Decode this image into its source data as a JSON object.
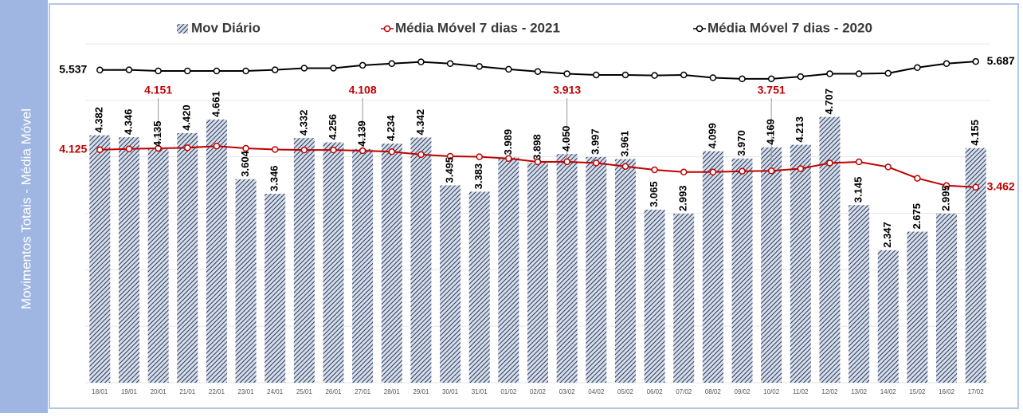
{
  "chart_data": {
    "type": "bar",
    "y_label": "Movimentos Totais - Média Móvel",
    "categories": [
      "18/01",
      "19/01",
      "20/01",
      "21/01",
      "22/01",
      "23/01",
      "24/01",
      "25/01",
      "26/01",
      "27/01",
      "28/01",
      "29/01",
      "30/01",
      "31/01",
      "01/02",
      "02/02",
      "03/02",
      "04/02",
      "05/02",
      "06/02",
      "07/02",
      "08/02",
      "09/02",
      "10/02",
      "11/02",
      "12/02",
      "13/02",
      "14/02",
      "15/02",
      "16/02",
      "17/02"
    ],
    "ylim": [
      0,
      6000
    ],
    "yticks": [
      0,
      1000,
      2000,
      3000,
      4000,
      5000,
      6000
    ],
    "grid": true,
    "series": [
      {
        "name": "Mov Diário",
        "type": "bar",
        "color": "#1f3864",
        "values": [
          4382,
          4346,
          4135,
          4420,
          4661,
          3604,
          3346,
          4332,
          4256,
          4139,
          4234,
          4342,
          3495,
          3383,
          3989,
          3898,
          4050,
          3997,
          3961,
          3065,
          2993,
          4099,
          3970,
          4169,
          4213,
          4707,
          3145,
          2347,
          2675,
          2995,
          4155
        ],
        "value_labels": [
          "4.382",
          "4.346",
          "4.135",
          "4.420",
          "4.661",
          "3.604",
          "3.346",
          "4.332",
          "4.256",
          "4.139",
          "4.234",
          "4.342",
          "3.495",
          "3.383",
          "3.989",
          "3.898",
          "4.050",
          "3.997",
          "3.961",
          "3.065",
          "2.993",
          "4.099",
          "3.970",
          "4.169",
          "4.213",
          "4.707",
          "3.145",
          "2.347",
          "2.675",
          "2.995",
          "4.155"
        ]
      },
      {
        "name": "Média Móvel 7 dias - 2021",
        "type": "line",
        "color": "#c00000",
        "values": [
          4125,
          4140,
          4151,
          4160,
          4190,
          4150,
          4130,
          4120,
          4120,
          4108,
          4090,
          4040,
          4010,
          4000,
          3970,
          3910,
          3913,
          3890,
          3830,
          3770,
          3730,
          3730,
          3745,
          3751,
          3790,
          3890,
          3910,
          3820,
          3620,
          3490,
          3462
        ],
        "value_labels": [
          "4.125",
          null,
          "4.151",
          null,
          null,
          null,
          null,
          null,
          null,
          "4.108",
          null,
          null,
          null,
          null,
          null,
          null,
          "3.913",
          null,
          null,
          null,
          null,
          null,
          null,
          "3.751",
          null,
          null,
          null,
          null,
          null,
          null,
          "3.462"
        ]
      },
      {
        "name": "Média Móvel 7 dias - 2020",
        "type": "line",
        "color": "#000000",
        "values": [
          5537,
          5540,
          5520,
          5520,
          5520,
          5520,
          5540,
          5570,
          5570,
          5620,
          5650,
          5680,
          5650,
          5600,
          5550,
          5510,
          5470,
          5450,
          5450,
          5440,
          5450,
          5400,
          5380,
          5380,
          5420,
          5470,
          5470,
          5480,
          5580,
          5650,
          5687
        ],
        "value_labels": [
          "5.537",
          null,
          null,
          null,
          null,
          null,
          null,
          null,
          null,
          null,
          null,
          null,
          null,
          null,
          null,
          null,
          null,
          null,
          null,
          null,
          null,
          null,
          null,
          null,
          null,
          null,
          null,
          null,
          null,
          null,
          "5.687"
        ]
      }
    ]
  }
}
